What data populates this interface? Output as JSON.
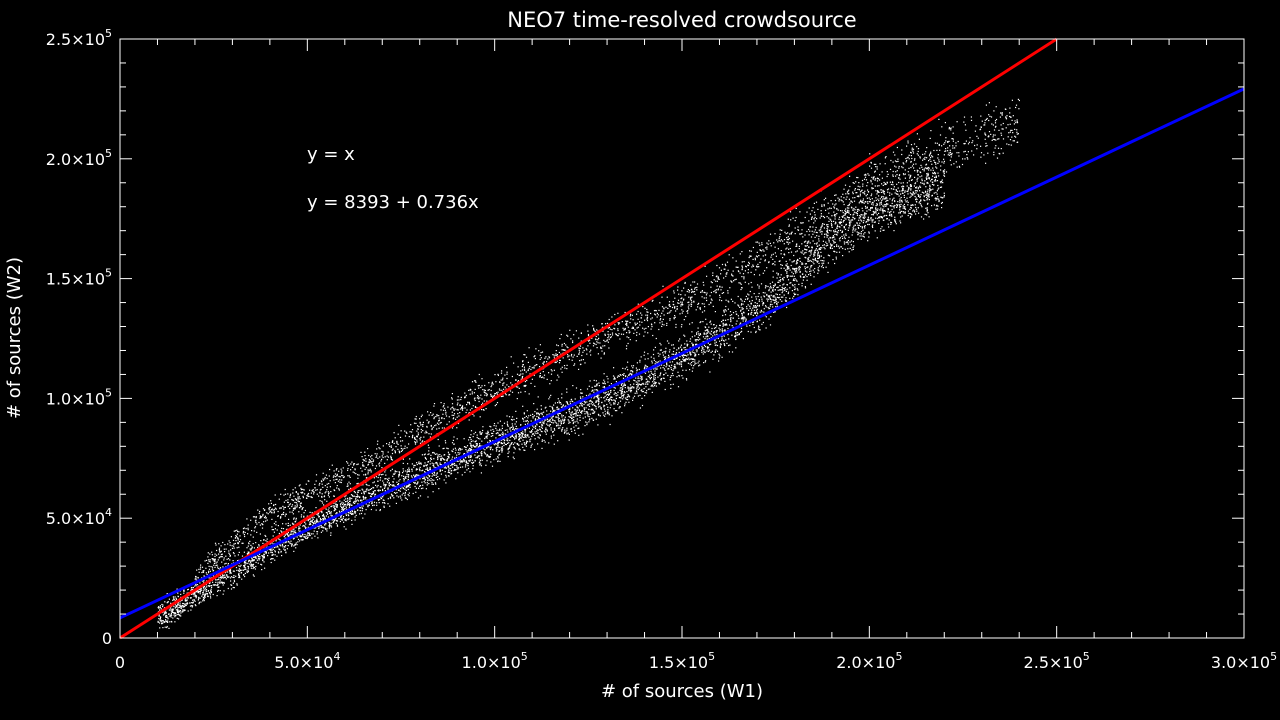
{
  "chart_data": {
    "type": "scatter",
    "title": "NEO7 time-resolved crowdsource",
    "xlabel": "# of sources (W1)",
    "ylabel": "# of sources (W2)",
    "xlim": [
      0,
      300000
    ],
    "ylim": [
      0,
      250000
    ],
    "x_ticks": [
      {
        "value": 0,
        "mant": "0",
        "exp": ""
      },
      {
        "value": 50000,
        "mant": "5.0×10",
        "exp": "4"
      },
      {
        "value": 100000,
        "mant": "1.0×10",
        "exp": "5"
      },
      {
        "value": 150000,
        "mant": "1.5×10",
        "exp": "5"
      },
      {
        "value": 200000,
        "mant": "2.0×10",
        "exp": "5"
      },
      {
        "value": 250000,
        "mant": "2.5×10",
        "exp": "5"
      },
      {
        "value": 300000,
        "mant": "3.0×10",
        "exp": "5"
      }
    ],
    "y_ticks": [
      {
        "value": 0,
        "mant": "0",
        "exp": ""
      },
      {
        "value": 50000,
        "mant": "5.0×10",
        "exp": "4"
      },
      {
        "value": 100000,
        "mant": "1.0×10",
        "exp": "5"
      },
      {
        "value": 150000,
        "mant": "1.5×10",
        "exp": "5"
      },
      {
        "value": 200000,
        "mant": "2.0×10",
        "exp": "5"
      },
      {
        "value": 250000,
        "mant": "2.5×10",
        "exp": "5"
      }
    ],
    "lines": [
      {
        "label": "y = x",
        "intercept": 0,
        "slope": 1.0,
        "color": "#ff0000"
      },
      {
        "label": "y = 8393 + 0.736x",
        "intercept": 8393,
        "slope": 0.736,
        "color": "#0000ff"
      }
    ],
    "point_color": "#ffffff",
    "background": "#000000",
    "series": [
      {
        "band": "main",
        "values": [
          [
            10000,
            9000
          ],
          [
            20000,
            18000
          ],
          [
            30000,
            28000
          ],
          [
            40000,
            38000
          ],
          [
            50000,
            47000
          ],
          [
            60000,
            54000
          ],
          [
            70000,
            62000
          ],
          [
            80000,
            68000
          ],
          [
            90000,
            76000
          ],
          [
            100000,
            82000
          ],
          [
            110000,
            88000
          ],
          [
            120000,
            94000
          ],
          [
            130000,
            101000
          ],
          [
            140000,
            109000
          ],
          [
            150000,
            118000
          ],
          [
            160000,
            127000
          ],
          [
            170000,
            138000
          ],
          [
            180000,
            152000
          ],
          [
            190000,
            168000
          ],
          [
            200000,
            178000
          ],
          [
            210000,
            184000
          ],
          [
            220000,
            190000
          ]
        ]
      },
      {
        "band": "upper",
        "values": [
          [
            20000,
            25000
          ],
          [
            30000,
            40000
          ],
          [
            40000,
            52000
          ],
          [
            50000,
            60000
          ],
          [
            60000,
            68000
          ],
          [
            70000,
            77000
          ],
          [
            80000,
            86000
          ],
          [
            90000,
            96000
          ],
          [
            100000,
            104000
          ],
          [
            110000,
            112000
          ],
          [
            120000,
            120000
          ],
          [
            130000,
            126000
          ],
          [
            140000,
            133000
          ],
          [
            150000,
            140000
          ],
          [
            160000,
            148000
          ],
          [
            170000,
            158000
          ],
          [
            180000,
            168000
          ],
          [
            200000,
            190000
          ],
          [
            220000,
            205000
          ],
          [
            240000,
            215000
          ]
        ]
      }
    ]
  }
}
